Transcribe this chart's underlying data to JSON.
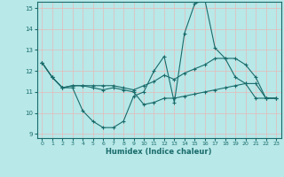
{
  "xlabel": "Humidex (Indice chaleur)",
  "xlim": [
    -0.5,
    23.5
  ],
  "ylim": [
    8.8,
    15.3
  ],
  "yticks": [
    9,
    10,
    11,
    12,
    13,
    14,
    15
  ],
  "xticks": [
    0,
    1,
    2,
    3,
    4,
    5,
    6,
    7,
    8,
    9,
    10,
    11,
    12,
    13,
    14,
    15,
    16,
    17,
    18,
    19,
    20,
    21,
    22,
    23
  ],
  "bg_color": "#b8e8e8",
  "line_color": "#1a6b6b",
  "grid_color_h": "#e8b8b8",
  "grid_color_v": "#e8b8b8",
  "lines": [
    {
      "x": [
        0,
        1,
        2,
        3,
        4,
        5,
        6,
        7,
        8,
        9,
        10,
        11,
        12,
        13,
        14,
        15,
        16,
        17,
        18,
        19,
        20,
        21,
        22,
        23
      ],
      "y": [
        12.4,
        11.7,
        11.2,
        11.2,
        10.1,
        9.6,
        9.3,
        9.3,
        9.6,
        10.8,
        11.0,
        12.0,
        12.7,
        10.5,
        13.8,
        15.2,
        15.4,
        13.1,
        12.6,
        11.7,
        11.4,
        10.7,
        10.7,
        10.7
      ]
    },
    {
      "x": [
        0,
        1,
        2,
        3,
        4,
        5,
        6,
        7,
        8,
        9,
        10,
        11,
        12,
        13,
        14,
        15,
        16,
        17,
        18,
        19,
        20,
        21,
        22,
        23
      ],
      "y": [
        12.4,
        11.7,
        11.2,
        11.3,
        11.3,
        11.3,
        11.3,
        11.3,
        11.2,
        11.1,
        11.3,
        11.5,
        11.8,
        11.6,
        11.9,
        12.1,
        12.3,
        12.6,
        12.6,
        12.6,
        12.3,
        11.7,
        10.7,
        10.7
      ]
    },
    {
      "x": [
        0,
        1,
        2,
        3,
        4,
        5,
        6,
        7,
        8,
        9,
        10,
        11,
        12,
        13,
        14,
        15,
        16,
        17,
        18,
        19,
        20,
        21,
        22,
        23
      ],
      "y": [
        12.4,
        11.7,
        11.2,
        11.3,
        11.3,
        11.2,
        11.1,
        11.2,
        11.1,
        11.0,
        10.4,
        10.5,
        10.7,
        10.7,
        10.8,
        10.9,
        11.0,
        11.1,
        11.2,
        11.3,
        11.4,
        11.4,
        10.7,
        10.7
      ]
    }
  ]
}
